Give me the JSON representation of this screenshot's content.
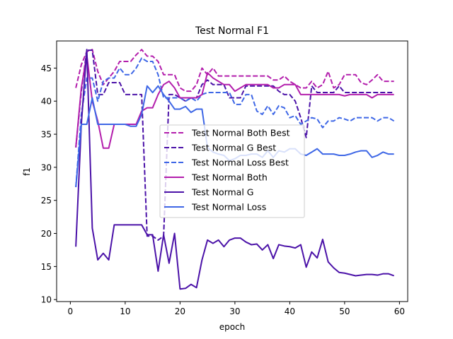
{
  "chart_data": {
    "type": "line",
    "title": "Test Normal F1",
    "xlabel": "epoch",
    "ylabel": "f1",
    "xlim": [
      -2.5,
      61.5
    ],
    "ylim": [
      9.7,
      49.1
    ],
    "xticks": [
      0,
      10,
      20,
      30,
      40,
      50,
      60
    ],
    "yticks": [
      10,
      15,
      20,
      25,
      30,
      35,
      40,
      45
    ],
    "grid": false,
    "legend_position": "center",
    "x": [
      1,
      2,
      3,
      4,
      5,
      6,
      7,
      8,
      9,
      10,
      11,
      12,
      13,
      14,
      15,
      16,
      17,
      18,
      19,
      20,
      21,
      22,
      23,
      24,
      25,
      26,
      27,
      28,
      29,
      30,
      31,
      32,
      33,
      34,
      35,
      36,
      37,
      38,
      39,
      40,
      41,
      42,
      43,
      44,
      45,
      46,
      47,
      48,
      49,
      50,
      51,
      52,
      53,
      54,
      55,
      56,
      57,
      58,
      59
    ],
    "series": [
      {
        "name": "Test Normal Both Best",
        "color": "#b31eac",
        "dash": true,
        "values": [
          42.0,
          45.5,
          47.5,
          47.8,
          44.5,
          42.5,
          43.5,
          44.5,
          46.0,
          46.0,
          46.0,
          47.0,
          47.8,
          46.8,
          46.8,
          46.0,
          44.0,
          44.0,
          44.0,
          42.0,
          41.5,
          41.5,
          42.5,
          45.0,
          44.0,
          45.0,
          43.8,
          43.8,
          43.8,
          43.8,
          43.8,
          43.8,
          43.8,
          43.8,
          43.8,
          43.8,
          43.2,
          43.2,
          43.8,
          43.0,
          42.5,
          42.0,
          42.0,
          43.0,
          42.0,
          42.5,
          44.5,
          42.0,
          42.5,
          44.0,
          44.0,
          44.0,
          42.8,
          42.5,
          43.2,
          44.0,
          43.0,
          43.0,
          43.0
        ]
      },
      {
        "name": "Test Normal G Best",
        "color": "#4b12a8",
        "dash": true,
        "values": [
          33.0,
          41.5,
          47.7,
          47.7,
          41.0,
          41.0,
          42.8,
          42.8,
          42.8,
          41.0,
          41.0,
          41.0,
          41.0,
          19.6,
          19.6,
          19.0,
          19.6,
          41.0,
          41.0,
          40.5,
          40.0,
          40.5,
          40.5,
          42.5,
          43.2,
          42.5,
          42.5,
          42.5,
          40.5,
          40.5,
          40.5,
          42.3,
          42.3,
          42.3,
          42.3,
          42.3,
          42.3,
          41.5,
          41.0,
          41.0,
          40.0,
          37.5,
          34.5,
          42.3,
          41.3,
          41.3,
          41.3,
          41.3,
          42.3,
          41.3,
          41.3,
          41.3,
          41.3,
          41.3,
          41.3,
          41.3,
          41.3,
          41.3,
          41.3
        ]
      },
      {
        "name": "Test Normal Loss Best",
        "color": "#3e67e6",
        "dash": true,
        "values": [
          27.0,
          38.0,
          43.5,
          43.5,
          40.0,
          43.0,
          43.5,
          43.5,
          45.0,
          44.0,
          44.0,
          45.0,
          46.5,
          46.0,
          46.0,
          44.0,
          40.5,
          40.5,
          40.5,
          40.5,
          40.0,
          40.5,
          40.0,
          41.0,
          41.3,
          41.3,
          41.3,
          41.3,
          41.3,
          39.5,
          39.5,
          41.0,
          41.0,
          38.5,
          38.0,
          39.3,
          38.0,
          39.3,
          39.0,
          37.5,
          37.8,
          36.5,
          37.0,
          37.5,
          37.3,
          36.0,
          37.0,
          37.0,
          37.5,
          37.3,
          37.0,
          37.5,
          37.5,
          37.5,
          37.5,
          37.0,
          37.5,
          37.5,
          37.0
        ]
      },
      {
        "name": "Test Normal Both",
        "color": "#b31eac",
        "dash": false,
        "values": [
          33.0,
          42.0,
          47.0,
          40.0,
          37.0,
          32.9,
          32.9,
          36.5,
          36.5,
          36.5,
          36.5,
          36.5,
          38.5,
          39.0,
          39.0,
          41.0,
          42.5,
          43.0,
          42.0,
          40.5,
          40.5,
          40.5,
          40.5,
          41.0,
          44.3,
          43.5,
          43.0,
          42.5,
          42.5,
          41.5,
          42.0,
          42.5,
          42.5,
          42.5,
          42.5,
          42.5,
          42.0,
          42.0,
          42.5,
          42.5,
          42.5,
          41.0,
          41.0,
          41.0,
          41.0,
          41.0,
          41.0,
          41.0,
          41.0,
          40.8,
          41.0,
          41.0,
          41.0,
          41.0,
          40.5,
          41.0,
          41.0,
          41.0,
          41.0
        ]
      },
      {
        "name": "Test Normal G",
        "color": "#4b12a8",
        "dash": false,
        "values": [
          18.0,
          36.5,
          47.8,
          20.8,
          16.0,
          17.0,
          16.0,
          21.3,
          21.3,
          21.3,
          21.3,
          21.3,
          21.3,
          19.8,
          19.8,
          14.3,
          19.8,
          15.5,
          20.0,
          11.6,
          11.7,
          12.3,
          11.8,
          16.0,
          19.0,
          18.5,
          19.0,
          18.0,
          19.0,
          19.3,
          19.3,
          18.7,
          18.3,
          18.4,
          17.5,
          18.3,
          16.2,
          18.3,
          18.1,
          18.0,
          17.8,
          18.3,
          14.9,
          17.2,
          16.3,
          19.1,
          15.7,
          14.8,
          14.1,
          14.0,
          13.8,
          13.6,
          13.7,
          13.8,
          13.8,
          13.7,
          13.9,
          13.9,
          13.6
        ]
      },
      {
        "name": "Test Normal Loss",
        "color": "#3e67e6",
        "dash": false,
        "values": [
          27.0,
          36.5,
          36.5,
          40.5,
          36.5,
          36.5,
          36.5,
          36.5,
          36.5,
          36.5,
          36.2,
          36.2,
          38.0,
          42.3,
          41.3,
          42.3,
          41.0,
          40.0,
          38.8,
          38.8,
          39.2,
          38.3,
          38.8,
          38.8,
          33.0,
          32.3,
          32.0,
          31.8,
          31.0,
          31.3,
          31.8,
          31.8,
          32.0,
          32.0,
          31.5,
          32.5,
          31.5,
          32.5,
          32.3,
          32.8,
          32.8,
          32.0,
          31.8,
          32.3,
          32.8,
          32.0,
          32.0,
          32.0,
          31.8,
          31.8,
          32.0,
          32.3,
          32.5,
          32.5,
          31.5,
          31.8,
          32.3,
          32.0,
          32.0
        ]
      }
    ]
  }
}
